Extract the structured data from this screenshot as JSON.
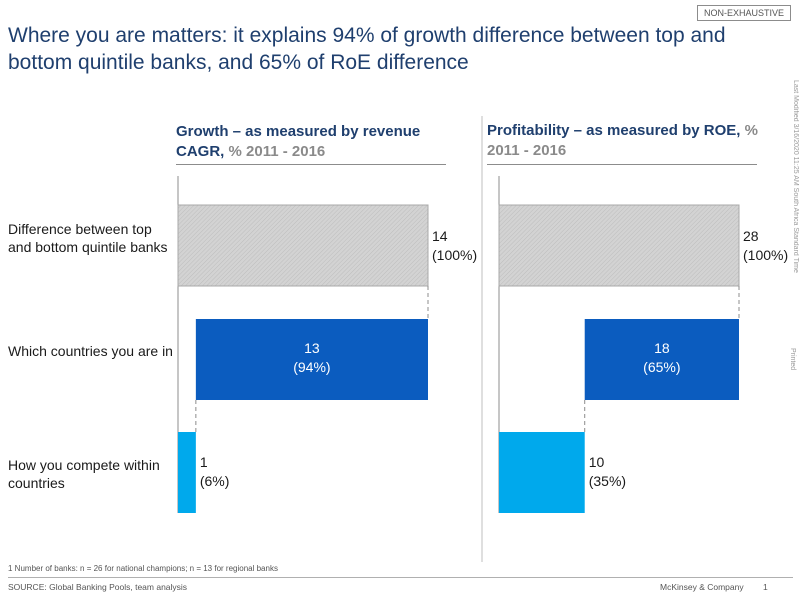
{
  "badge": "NON-EXHAUSTIVE",
  "title": "Where you are matters: it explains 94% of growth difference between top and bottom quintile banks, and 65% of RoE difference",
  "side_note": "Last Modified 3/16/2020 11:25 AM South Africa Standard Time",
  "side_printed": "Printed",
  "row_labels": [
    "Difference between top and bottom quintile banks",
    "Which countries you are in",
    "How you compete within countries"
  ],
  "panels": [
    {
      "title_main": "Growth – as measured by revenue CAGR,",
      "title_sub": "% 2011 - 2016"
    },
    {
      "title_main": "Profitability – as measured by ROE,",
      "title_sub": "% 2011 - 2016"
    }
  ],
  "chart_data": [
    {
      "type": "bar",
      "subtype": "waterfall",
      "title": "Growth – as measured by revenue CAGR, % 2011 - 2016",
      "categories": [
        "Difference between top and bottom quintile banks",
        "Which countries you are in",
        "How you compete within countries"
      ],
      "values": [
        14,
        13,
        1
      ],
      "labels": [
        "14",
        "13",
        "1"
      ],
      "share_labels": [
        "(100%)",
        "(94%)",
        "(6%)"
      ],
      "colors": [
        "#cfcfcf",
        "#0b5cbf",
        "#00a9ec"
      ]
    },
    {
      "type": "bar",
      "subtype": "waterfall",
      "title": "Profitability – as measured by ROE, % 2011 - 2016",
      "categories": [
        "Difference between top and bottom quintile banks",
        "Which countries you are in",
        "How you compete within countries"
      ],
      "values": [
        28,
        18,
        10
      ],
      "labels": [
        "28",
        "18",
        "10"
      ],
      "share_labels": [
        "(100%)",
        "(65%)",
        "(35%)"
      ],
      "colors": [
        "#cfcfcf",
        "#0b5cbf",
        "#00a9ec"
      ]
    }
  ],
  "footnote": "1 Number of banks: n = 26 for national champions; n = 13 for regional banks",
  "source": "SOURCE:  Global Banking Pools, team analysis",
  "company": "McKinsey & Company",
  "page_number": "1"
}
